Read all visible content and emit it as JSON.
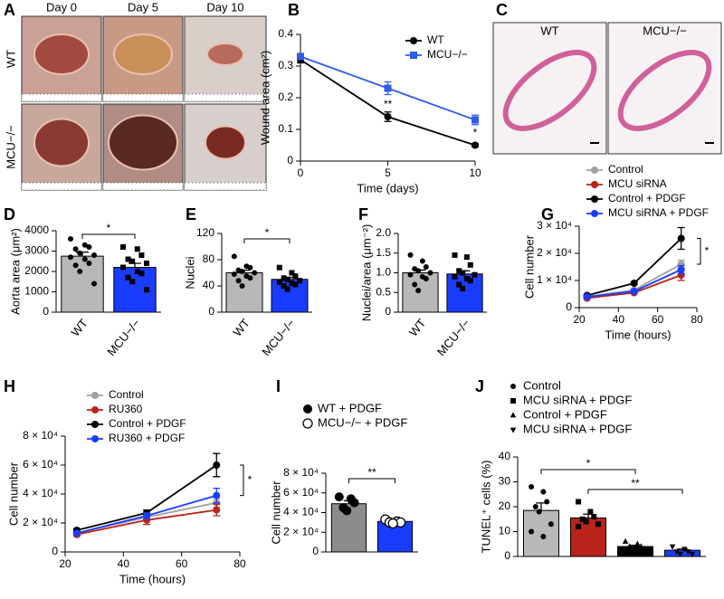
{
  "figure_a": {
    "label": "A",
    "columns": [
      "Day 0",
      "Day 5",
      "Day 10"
    ],
    "rows": [
      "WT",
      "MCU−/−"
    ]
  },
  "figure_c": {
    "label": "C",
    "columns": [
      "WT",
      "MCU−/−"
    ]
  },
  "chart_data": [
    {
      "label": "B",
      "type": "line",
      "ylabel": "Wound area (cm²)",
      "xlabel": "Time (days)",
      "x": [
        0,
        5,
        10
      ],
      "xlim": [
        0,
        10
      ],
      "xticks": [
        0,
        5,
        10
      ],
      "ylim": [
        0,
        0.4
      ],
      "yticks": [
        0,
        0.1,
        0.2,
        0.3,
        0.4
      ],
      "legend": "upper right",
      "series": [
        {
          "name": "WT",
          "color": "#000000",
          "marker": "circle",
          "values": [
            0.32,
            0.14,
            0.05
          ],
          "errors": [
            0.01,
            0.015,
            0.005
          ]
        },
        {
          "name": "MCU−/−",
          "color": "#2f5be8",
          "marker": "square",
          "values": [
            0.33,
            0.23,
            0.13
          ],
          "errors": [
            0.01,
            0.02,
            0.015
          ]
        }
      ],
      "annotations": [
        "**",
        "*"
      ]
    },
    {
      "label": "D",
      "type": "bar",
      "ylabel": "Aorta area (μm²)",
      "categories": [
        "WT",
        "MCU−/−"
      ],
      "values": [
        2750,
        2200
      ],
      "errors": [
        200,
        200
      ],
      "colors": [
        "#b8b8b8",
        "#1a3cff"
      ],
      "markers": [
        "circle",
        "square"
      ],
      "points": [
        [
          3600,
          3300,
          3200,
          3100,
          2900,
          2800,
          2700,
          2600,
          2400,
          2300,
          2000,
          1400
        ],
        [
          3200,
          3100,
          2800,
          2600,
          2500,
          2400,
          2200,
          2000,
          1900,
          1700,
          1500,
          1100
        ]
      ],
      "ylim": [
        0,
        4000
      ],
      "yticks": [
        0,
        1000,
        2000,
        3000,
        4000
      ],
      "annotations": [
        "*"
      ]
    },
    {
      "label": "E",
      "type": "bar",
      "ylabel": "Nuclei",
      "categories": [
        "WT",
        "MCU−/−"
      ],
      "values": [
        60,
        50
      ],
      "errors": [
        4,
        3
      ],
      "colors": [
        "#b8b8b8",
        "#1a3cff"
      ],
      "markers": [
        "circle",
        "square"
      ],
      "points": [
        [
          85,
          70,
          68,
          64,
          62,
          60,
          58,
          55,
          52,
          48,
          40
        ],
        [
          68,
          60,
          55,
          52,
          50,
          48,
          46,
          44,
          42,
          40,
          35
        ]
      ],
      "ylim": [
        0,
        120
      ],
      "yticks": [
        0,
        40,
        80,
        120
      ],
      "annotations": [
        "*"
      ]
    },
    {
      "label": "F",
      "type": "bar",
      "ylabel": "Nuclei/area (μm⁻²)",
      "categories": [
        "WT",
        "MCU−/−"
      ],
      "values": [
        1.0,
        0.97
      ],
      "errors": [
        0.07,
        0.08
      ],
      "colors": [
        "#b8b8b8",
        "#1a3cff"
      ],
      "markers": [
        "circle",
        "square"
      ],
      "points": [
        [
          1.45,
          1.3,
          1.15,
          1.1,
          1.05,
          1.0,
          0.95,
          0.9,
          0.85,
          0.7,
          0.55
        ],
        [
          1.45,
          1.4,
          1.2,
          1.05,
          1.0,
          0.95,
          0.9,
          0.85,
          0.8,
          0.7,
          0.6
        ]
      ],
      "ylim": [
        0,
        2.0
      ],
      "yticks": [
        0,
        0.5,
        {
          "value": 1,
          "label": "1.0"
        },
        1.5,
        {
          "value": 2,
          "label": "2.0"
        }
      ]
    },
    {
      "label": "G",
      "type": "line",
      "ylabel": "Cell number",
      "xlabel": "Time (hours)",
      "x": [
        24,
        48,
        72
      ],
      "xlim": [
        20,
        80
      ],
      "xticks": [
        20,
        40,
        60,
        80
      ],
      "ylim": [
        0,
        30000
      ],
      "yticks": [
        0,
        {
          "value": 10000,
          "label": "1 × 10⁴"
        },
        {
          "value": 20000,
          "label": "2 × 10⁴"
        },
        {
          "value": 30000,
          "label": "3 × 10⁴"
        }
      ],
      "legend": "top",
      "series": [
        {
          "name": "Control",
          "color": "#a0a0a0",
          "marker": "circle",
          "values": [
            4000,
            6500,
            16000
          ],
          "errors": [
            300,
            500,
            1500
          ]
        },
        {
          "name": "MCU siRNA",
          "color": "#b8231c",
          "marker": "circle",
          "values": [
            3500,
            5500,
            12000
          ],
          "errors": [
            300,
            400,
            2000
          ]
        },
        {
          "name": "Control + PDGF",
          "color": "#000000",
          "marker": "circle",
          "values": [
            4500,
            9000,
            25500
          ],
          "errors": [
            300,
            500,
            4000
          ]
        },
        {
          "name": "MCU siRNA + PDGF",
          "color": "#1a3cff",
          "marker": "circle",
          "values": [
            4000,
            6000,
            14000
          ],
          "errors": [
            300,
            400,
            1500
          ]
        }
      ],
      "annotations": [
        "*"
      ]
    },
    {
      "label": "H",
      "type": "line",
      "ylabel": "Cell number",
      "xlabel": "Time (hours)",
      "x": [
        24,
        48,
        72
      ],
      "xlim": [
        20,
        80
      ],
      "xticks": [
        20,
        40,
        60,
        80
      ],
      "ylim": [
        0,
        80000
      ],
      "yticks": [
        0,
        {
          "value": 20000,
          "label": "2 × 10⁴"
        },
        {
          "value": 40000,
          "label": "4 × 10⁴"
        },
        {
          "value": 60000,
          "label": "6 × 10⁴"
        },
        {
          "value": 80000,
          "label": "8 × 10⁴"
        }
      ],
      "legend": "top",
      "series": [
        {
          "name": "Control",
          "color": "#a0a0a0",
          "marker": "circle",
          "values": [
            13000,
            24000,
            34000
          ],
          "errors": [
            1000,
            2000,
            3000
          ]
        },
        {
          "name": "RU360",
          "color": "#b8231c",
          "marker": "circle",
          "values": [
            12000,
            22000,
            29000
          ],
          "errors": [
            1000,
            3000,
            4000
          ]
        },
        {
          "name": "Control + PDGF",
          "color": "#000000",
          "marker": "circle",
          "values": [
            15000,
            27000,
            60000
          ],
          "errors": [
            1000,
            2000,
            8000
          ]
        },
        {
          "name": "RU360 + PDGF",
          "color": "#1a3cff",
          "marker": "circle",
          "values": [
            13000,
            25000,
            39000
          ],
          "errors": [
            1000,
            2000,
            5000
          ]
        }
      ],
      "annotations": [
        "*"
      ]
    },
    {
      "label": "I",
      "type": "bar",
      "ylabel": "Cell number",
      "categories": [
        "WT + PDGF",
        "MCU−/− + PDGF"
      ],
      "legend": "top",
      "values": [
        49000,
        31000
      ],
      "errors": [
        3000,
        1500
      ],
      "colors": [
        "#8c8c8c",
        "#1a3cff"
      ],
      "markers": [
        "circle",
        "circle-open"
      ],
      "points": [
        [
          56000,
          54000,
          50000,
          45000,
          42000
        ],
        [
          33000,
          31000,
          30000,
          30000,
          29000
        ]
      ],
      "ylim": [
        0,
        80000
      ],
      "yticks": [
        0,
        {
          "value": 20000,
          "label": "2 × 10⁴"
        },
        {
          "value": 40000,
          "label": "4 × 10⁴"
        },
        {
          "value": 60000,
          "label": "6 × 10⁴"
        },
        {
          "value": 80000,
          "label": "8 × 10⁴"
        }
      ],
      "annotations": [
        "**"
      ]
    },
    {
      "label": "J",
      "type": "bar",
      "ylabel": "TUNEL⁺ cells (%)",
      "categories": [
        "Control",
        "MCU siRNA + PDGF",
        "Control + PDGF",
        "MCU siRNA + PDGF"
      ],
      "legend": "top",
      "values": [
        18.5,
        15.5,
        4,
        2.5
      ],
      "errors": [
        3,
        1.5,
        0.5,
        0.5
      ],
      "colors": [
        "#b8b8b8",
        "#b8231c",
        "#000000",
        "#1a3cff"
      ],
      "markers": [
        "circle",
        "square",
        "triangle",
        "triangle-down"
      ],
      "points": [
        [
          28,
          26,
          22,
          20,
          18,
          13,
          10,
          8
        ],
        [
          22,
          18,
          16,
          15,
          14,
          13,
          12
        ],
        [
          6,
          5,
          4,
          4,
          3,
          3
        ],
        [
          4,
          3,
          2,
          2,
          1,
          1
        ]
      ],
      "ylim": [
        0,
        40
      ],
      "yticks": [
        0,
        10,
        20,
        30,
        40
      ],
      "annotations": [
        "*",
        "**"
      ]
    }
  ]
}
